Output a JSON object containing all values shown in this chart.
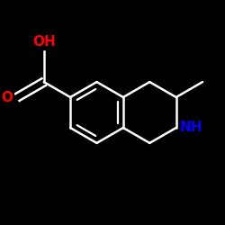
{
  "background_color": "#000000",
  "bond_color": "#000000",
  "line_color": "#ffffff",
  "atom_colors": {
    "O": "#ff0000",
    "N": "#0000ff",
    "C": "#ffffff",
    "H": "#ffffff"
  },
  "figsize": [
    2.5,
    2.5
  ],
  "dpi": 100,
  "bond_lw": 1.8,
  "aromatic_lw": 1.5,
  "font_size_label": 11,
  "font_size_small": 9
}
